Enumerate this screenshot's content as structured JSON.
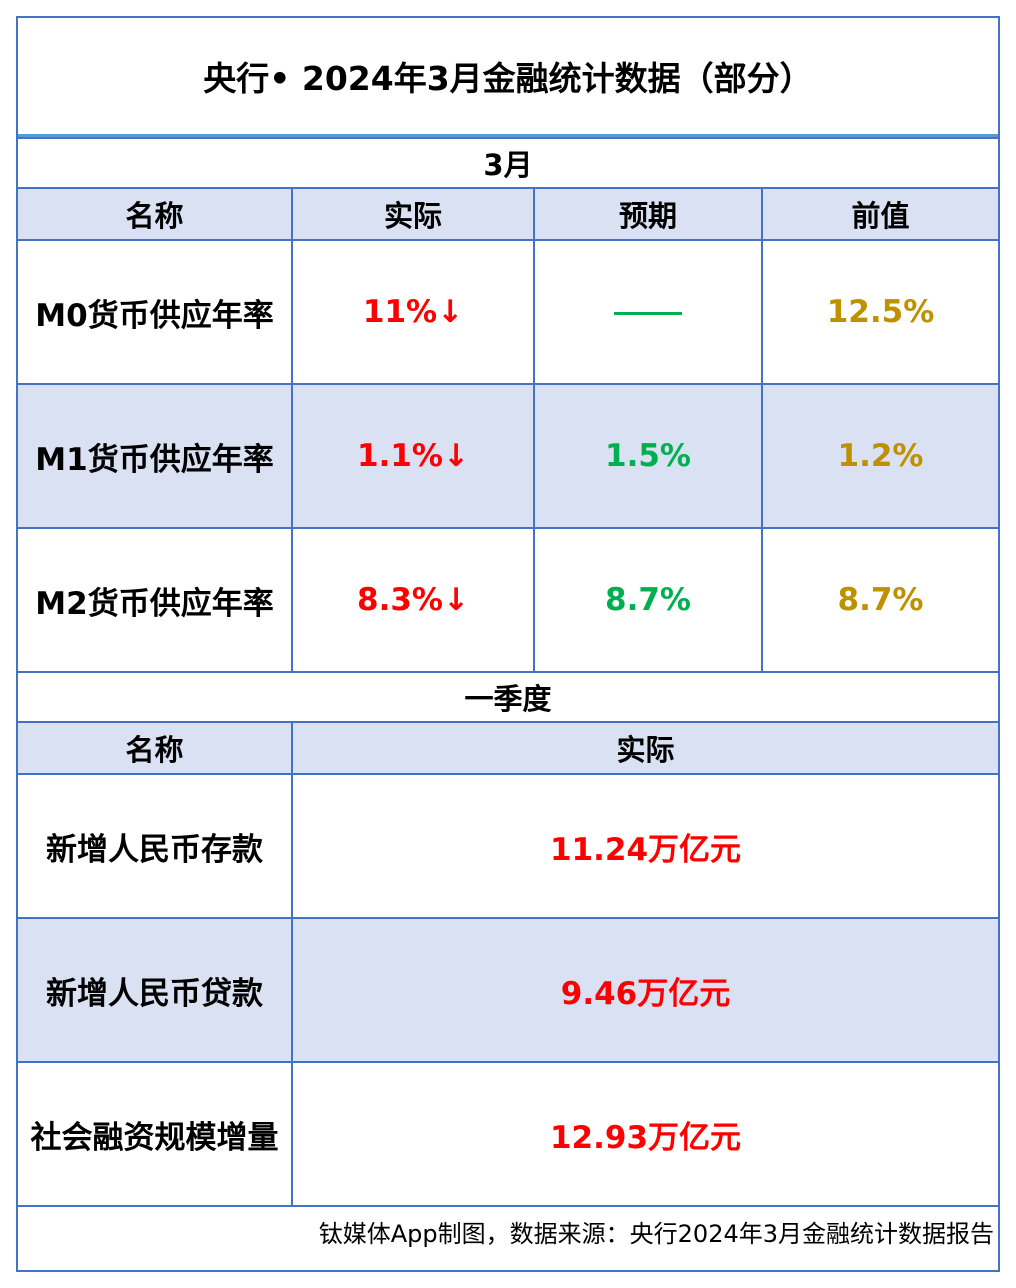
{
  "title": "央行• 2024年3月金融统计数据（部分）",
  "colors": {
    "border": "#4472C4",
    "header_fill": "#D9E1F2",
    "actual": "#FF0000",
    "expected": "#00B050",
    "previous": "#BF9000"
  },
  "section1": {
    "label": "3月",
    "headers": [
      "名称",
      "实际",
      "预期",
      "前值"
    ],
    "rows": [
      {
        "name": "M0货币供应年率",
        "actual": "11%↓",
        "expected": "",
        "expected_icon": "dash-line",
        "previous": "12.5%"
      },
      {
        "name": "M1货币供应年率",
        "actual": "1.1%↓",
        "expected": "1.5%",
        "previous": "1.2%"
      },
      {
        "name": "M2货币供应年率",
        "actual": "8.3%↓",
        "expected": "8.7%",
        "previous": "8.7%"
      }
    ]
  },
  "section2": {
    "label": "一季度",
    "headers": [
      "名称",
      "实际"
    ],
    "rows": [
      {
        "name": "新增人民币存款",
        "actual": "11.24万亿元"
      },
      {
        "name": "新增人民币贷款",
        "actual": "9.46万亿元"
      },
      {
        "name": "社会融资规模增量",
        "actual": "12.93万亿元"
      }
    ]
  },
  "footer": "钛媒体App制图，数据来源：央行2024年3月金融统计数据报告"
}
